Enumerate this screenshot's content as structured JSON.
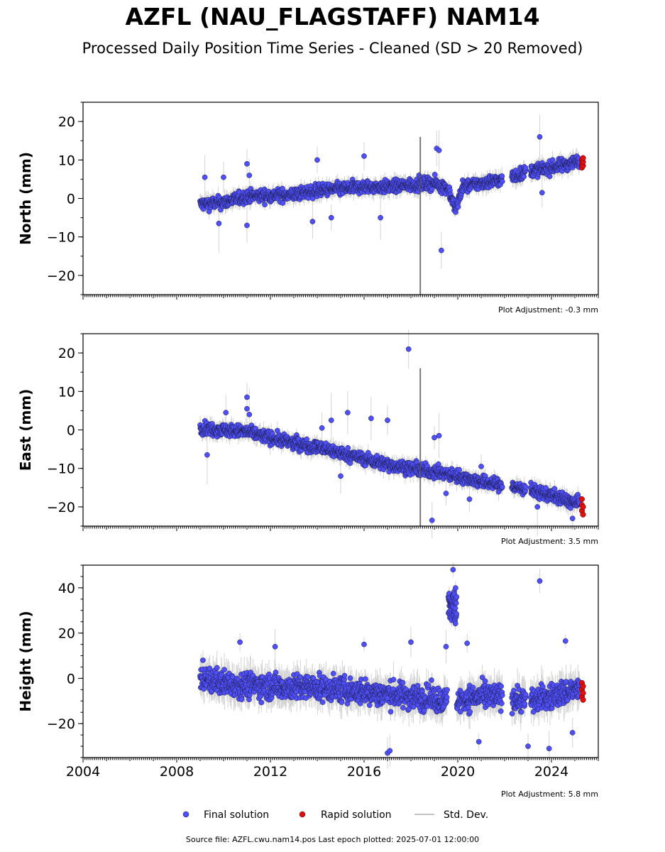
{
  "title": "AZFL (NAU_FLAGSTAFF) NAM14",
  "subtitle": "Processed Daily Position Time Series - Cleaned (SD > 20 Removed)",
  "source_note": "Source file: AZFL.cwu.nam14.pos  Last epoch plotted: 2025-07-01 12:00:00",
  "colors": {
    "final": "#4f4ffb",
    "rapid": "#e01010",
    "std": "#b0b0b0"
  },
  "legend": {
    "placement": "bottom-center",
    "items": [
      {
        "key": "final",
        "label": "Final solution"
      },
      {
        "key": "rapid",
        "label": "Rapid solution"
      },
      {
        "key": "std",
        "label": "Std. Dev."
      }
    ]
  },
  "chart_data": [
    {
      "type": "scatter",
      "ylabel": "North (mm)",
      "xlim": [
        2004,
        2026
      ],
      "ylim": [
        -25,
        25
      ],
      "yticks": [
        -20,
        -10,
        0,
        10,
        20
      ],
      "xticks": [
        2004,
        2008,
        2012,
        2016,
        2020,
        2024
      ],
      "show_xtick_labels": false,
      "adjustment": "Plot Adjustment: -0.3 mm",
      "final_trend": [
        [
          2009.0,
          -1.5
        ],
        [
          2010.0,
          -1.0
        ],
        [
          2011.0,
          0.5
        ],
        [
          2012.0,
          0.8
        ],
        [
          2013.0,
          1.0
        ],
        [
          2014.0,
          2.0
        ],
        [
          2015.0,
          2.5
        ],
        [
          2016.0,
          3.0
        ],
        [
          2017.0,
          3.0
        ],
        [
          2018.0,
          3.5
        ],
        [
          2019.0,
          4.0
        ],
        [
          2019.6,
          2.5
        ],
        [
          2019.9,
          -3.0
        ],
        [
          2020.2,
          3.0
        ],
        [
          2021.0,
          4.0
        ],
        [
          2022.0,
          5.0
        ],
        [
          2023.0,
          7.0
        ],
        [
          2024.0,
          8.0
        ],
        [
          2025.0,
          9.5
        ]
      ],
      "final_noise": 1.6,
      "gaps": [
        [
          2021.9,
          2022.3
        ],
        [
          2022.9,
          2023.1
        ]
      ],
      "outliers": [
        [
          2009.2,
          5.5
        ],
        [
          2009.8,
          -6.5
        ],
        [
          2010.0,
          5.5
        ],
        [
          2011.0,
          9.0
        ],
        [
          2011.0,
          -7.0
        ],
        [
          2011.1,
          6.0
        ],
        [
          2014.0,
          10.0
        ],
        [
          2013.8,
          -6.0
        ],
        [
          2014.6,
          -5.0
        ],
        [
          2016.0,
          11.0
        ],
        [
          2016.7,
          -5.0
        ],
        [
          2019.1,
          13.0
        ],
        [
          2019.2,
          12.5
        ],
        [
          2019.3,
          -13.5
        ],
        [
          2023.5,
          16.0
        ],
        [
          2023.6,
          1.5
        ]
      ],
      "rapid": [
        [
          2025.3,
          8.0
        ],
        [
          2025.3,
          9.0
        ],
        [
          2025.3,
          10.0
        ],
        [
          2025.35,
          8.5
        ],
        [
          2025.35,
          9.5
        ],
        [
          2025.35,
          10.5
        ]
      ],
      "spike_x": 2018.4
    },
    {
      "type": "scatter",
      "ylabel": "East (mm)",
      "xlim": [
        2004,
        2026
      ],
      "ylim": [
        -25,
        25
      ],
      "yticks": [
        -20,
        -10,
        0,
        10,
        20
      ],
      "xticks": [
        2004,
        2008,
        2012,
        2016,
        2020,
        2024
      ],
      "show_xtick_labels": false,
      "adjustment": "Plot Adjustment: 3.5 mm",
      "final_trend": [
        [
          2009.0,
          0.5
        ],
        [
          2010.0,
          0.0
        ],
        [
          2011.0,
          -0.5
        ],
        [
          2012.0,
          -2.0
        ],
        [
          2013.0,
          -3.5
        ],
        [
          2014.0,
          -4.5
        ],
        [
          2015.0,
          -6.0
        ],
        [
          2016.0,
          -7.5
        ],
        [
          2017.0,
          -9.0
        ],
        [
          2018.0,
          -10.0
        ],
        [
          2019.0,
          -11.0
        ],
        [
          2020.0,
          -12.0
        ],
        [
          2021.0,
          -13.5
        ],
        [
          2022.0,
          -14.5
        ],
        [
          2023.0,
          -15.5
        ],
        [
          2024.0,
          -17.0
        ],
        [
          2025.0,
          -19.0
        ]
      ],
      "final_noise": 1.6,
      "gaps": [
        [
          2021.9,
          2022.3
        ],
        [
          2022.9,
          2023.1
        ]
      ],
      "outliers": [
        [
          2009.3,
          -6.5
        ],
        [
          2010.1,
          4.5
        ],
        [
          2011.0,
          8.5
        ],
        [
          2011.0,
          5.5
        ],
        [
          2011.1,
          4.0
        ],
        [
          2014.2,
          0.5
        ],
        [
          2014.6,
          2.5
        ],
        [
          2015.3,
          4.5
        ],
        [
          2015.0,
          -12.0
        ],
        [
          2016.3,
          3.0
        ],
        [
          2017.0,
          2.5
        ],
        [
          2017.9,
          21.0
        ],
        [
          2018.9,
          -23.5
        ],
        [
          2019.0,
          -2.0
        ],
        [
          2019.2,
          -1.5
        ],
        [
          2019.5,
          -16.5
        ],
        [
          2020.5,
          -18.0
        ],
        [
          2021.0,
          -9.5
        ],
        [
          2023.4,
          -20.0
        ],
        [
          2024.9,
          -23.0
        ]
      ],
      "rapid": [
        [
          2025.3,
          -18.0
        ],
        [
          2025.3,
          -19.5
        ],
        [
          2025.3,
          -21.0
        ],
        [
          2025.35,
          -20.0
        ],
        [
          2025.35,
          -22.0
        ]
      ],
      "spike_x": 2018.4
    },
    {
      "type": "scatter",
      "ylabel": "Height (mm)",
      "xlim": [
        2004,
        2026
      ],
      "ylim": [
        -35,
        50
      ],
      "yticks": [
        -20,
        0,
        20,
        40
      ],
      "xticks": [
        2004,
        2008,
        2012,
        2016,
        2020,
        2024
      ],
      "show_xtick_labels": true,
      "adjustment": "Plot Adjustment: 5.8 mm",
      "final_trend": [
        [
          2009.0,
          0.0
        ],
        [
          2010.0,
          -2.0
        ],
        [
          2011.0,
          -3.0
        ],
        [
          2012.0,
          -3.5
        ],
        [
          2013.0,
          -4.0
        ],
        [
          2014.0,
          -4.0
        ],
        [
          2015.0,
          -5.0
        ],
        [
          2016.0,
          -6.0
        ],
        [
          2017.0,
          -7.0
        ],
        [
          2018.0,
          -8.0
        ],
        [
          2019.0,
          -9.0
        ],
        [
          2019.5,
          -10.0
        ],
        [
          2020.4,
          -9.0
        ],
        [
          2021.0,
          -8.0
        ],
        [
          2022.0,
          -8.0
        ],
        [
          2023.0,
          -10.0
        ],
        [
          2024.0,
          -8.0
        ],
        [
          2025.0,
          -5.0
        ]
      ],
      "final_noise": 5.5,
      "gaps": [
        [
          2019.55,
          2019.8
        ],
        [
          2021.9,
          2022.3
        ],
        [
          2022.9,
          2023.1
        ]
      ],
      "cluster": {
        "x": [
          2019.6,
          2019.95
        ],
        "y_center": 32,
        "y_spread": 8
      },
      "outliers": [
        [
          2010.7,
          16.0
        ],
        [
          2012.2,
          14.0
        ],
        [
          2016.0,
          15.0
        ],
        [
          2017.0,
          -33.0
        ],
        [
          2017.1,
          -32.0
        ],
        [
          2018.0,
          16.0
        ],
        [
          2019.5,
          14.0
        ],
        [
          2019.8,
          48.0
        ],
        [
          2020.4,
          15.5
        ],
        [
          2020.9,
          -28.0
        ],
        [
          2023.0,
          -30.0
        ],
        [
          2023.5,
          43.0
        ],
        [
          2023.9,
          -31.0
        ],
        [
          2024.6,
          16.5
        ],
        [
          2024.9,
          -24.0
        ]
      ],
      "rapid": [
        [
          2025.3,
          -2.0
        ],
        [
          2025.3,
          -5.0
        ],
        [
          2025.3,
          -8.0
        ],
        [
          2025.35,
          -3.5
        ],
        [
          2025.35,
          -6.5
        ],
        [
          2025.35,
          -9.5
        ]
      ],
      "spike_x": null
    }
  ]
}
